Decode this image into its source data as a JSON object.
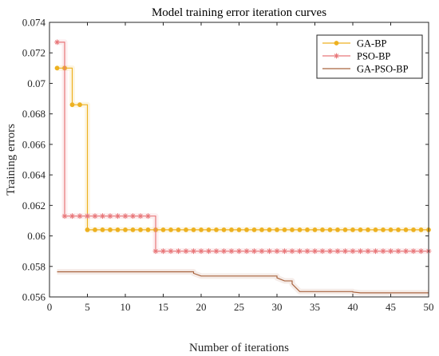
{
  "chart_data": {
    "type": "line",
    "title": "Model training error iteration curves",
    "xlabel": "Number of iterations",
    "ylabel": "Training errors",
    "xlim": [
      0,
      50
    ],
    "ylim": [
      0.056,
      0.074
    ],
    "xticks": [
      "0",
      "5",
      "10",
      "15",
      "20",
      "25",
      "30",
      "35",
      "40",
      "45",
      "50"
    ],
    "yticks": [
      "0.056",
      "0.058",
      "0.06",
      "0.062",
      "0.064",
      "0.066",
      "0.068",
      "0.07",
      "0.072",
      "0.074"
    ],
    "grid": false,
    "legend_position": "top-right",
    "series": [
      {
        "name": "GA-BP",
        "color": "#EDB120",
        "marker": "circle",
        "x": [
          1,
          2,
          3,
          4,
          5,
          6,
          7,
          8,
          9,
          10,
          11,
          12,
          13,
          14,
          15,
          16,
          17,
          18,
          19,
          20,
          21,
          22,
          23,
          24,
          25,
          26,
          27,
          28,
          29,
          30,
          31,
          32,
          33,
          34,
          35,
          36,
          37,
          38,
          39,
          40,
          41,
          42,
          43,
          44,
          45,
          46,
          47,
          48,
          49,
          50
        ],
        "y": [
          0.071,
          0.071,
          0.0686,
          0.0686,
          0.0604,
          0.0604,
          0.0604,
          0.0604,
          0.0604,
          0.0604,
          0.0604,
          0.0604,
          0.0604,
          0.0604,
          0.0604,
          0.0604,
          0.0604,
          0.0604,
          0.0604,
          0.0604,
          0.0604,
          0.0604,
          0.0604,
          0.0604,
          0.0604,
          0.0604,
          0.0604,
          0.0604,
          0.0604,
          0.0604,
          0.0604,
          0.0604,
          0.0604,
          0.0604,
          0.0604,
          0.0604,
          0.0604,
          0.0604,
          0.0604,
          0.0604,
          0.0604,
          0.0604,
          0.0604,
          0.0604,
          0.0604,
          0.0604,
          0.0604,
          0.0604,
          0.0604,
          0.0604
        ]
      },
      {
        "name": "PSO-BP",
        "color": "#E8777A",
        "marker": "star",
        "x": [
          1,
          2,
          3,
          4,
          5,
          6,
          7,
          8,
          9,
          10,
          11,
          12,
          13,
          14,
          15,
          16,
          17,
          18,
          19,
          20,
          21,
          22,
          23,
          24,
          25,
          26,
          27,
          28,
          29,
          30,
          31,
          32,
          33,
          34,
          35,
          36,
          37,
          38,
          39,
          40,
          41,
          42,
          43,
          44,
          45,
          46,
          47,
          48,
          49,
          50
        ],
        "y": [
          0.0727,
          0.0613,
          0.0613,
          0.0613,
          0.0613,
          0.0613,
          0.0613,
          0.0613,
          0.0613,
          0.0613,
          0.0613,
          0.0613,
          0.0613,
          0.059,
          0.059,
          0.059,
          0.059,
          0.059,
          0.059,
          0.059,
          0.059,
          0.059,
          0.059,
          0.059,
          0.059,
          0.059,
          0.059,
          0.059,
          0.059,
          0.059,
          0.059,
          0.059,
          0.059,
          0.059,
          0.059,
          0.059,
          0.059,
          0.059,
          0.059,
          0.059,
          0.059,
          0.059,
          0.059,
          0.059,
          0.059,
          0.059,
          0.059,
          0.059,
          0.059,
          0.059
        ]
      },
      {
        "name": "GA-PSO-BP",
        "color": "#A9643F",
        "marker": "none",
        "x": [
          1,
          19,
          19,
          20,
          30,
          30,
          31,
          32,
          32,
          33,
          33,
          40,
          40,
          41,
          50
        ],
        "y": [
          0.05765,
          0.05765,
          0.05755,
          0.05737,
          0.05737,
          0.05725,
          0.05705,
          0.05705,
          0.05685,
          0.05635,
          0.05635,
          0.05635,
          0.05632,
          0.05627,
          0.05627
        ]
      }
    ]
  }
}
